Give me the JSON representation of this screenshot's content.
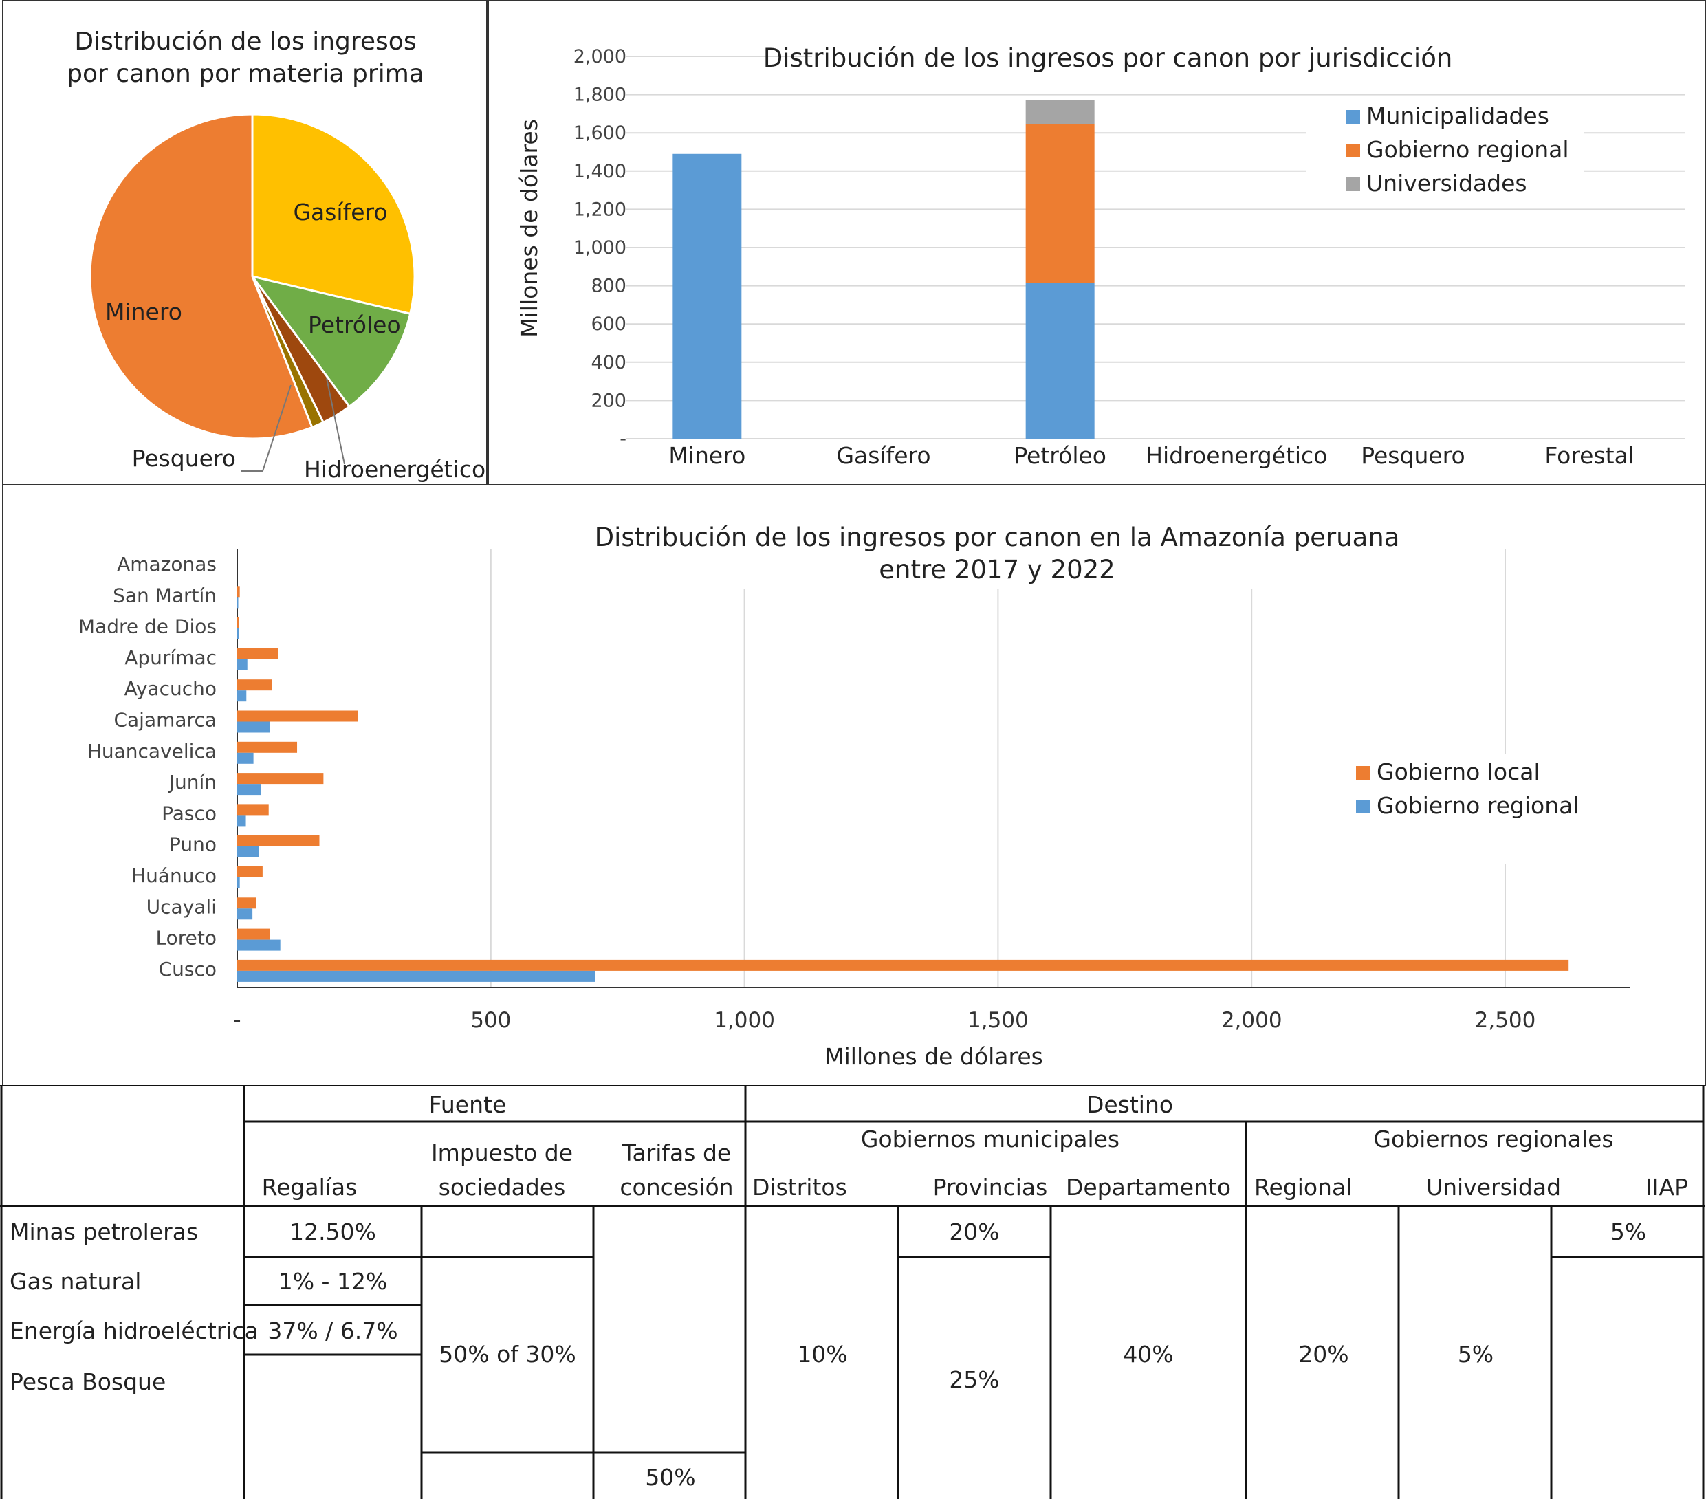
{
  "chart_data": [
    {
      "type": "pie",
      "title_lines": [
        "Distribución de los ingresos",
        "por canon por materia prima"
      ],
      "slices": [
        {
          "label": "Gasífero",
          "value": 28.7,
          "color": "#FFC000"
        },
        {
          "label": "Petróleo",
          "value": 11.1,
          "color": "#70AD47"
        },
        {
          "label": "Hidroenergético",
          "value": 3.0,
          "color": "#9E480E"
        },
        {
          "label": "Pesquero",
          "value": 1.2,
          "color": "#997300"
        },
        {
          "label": "Minero",
          "value": 56.0,
          "color": "#ED7D31"
        }
      ]
    },
    {
      "type": "bar",
      "stacked": true,
      "title": "Distribución de los ingresos por canon por jurisdicción",
      "ylabel": "Millones de dólares",
      "ylim": [
        0,
        2000
      ],
      "yticks": [
        "-",
        "200",
        "400",
        "600",
        "800",
        "1,000",
        "1,200",
        "1,400",
        "1,600",
        "1,800",
        "2,000"
      ],
      "categories": [
        "Minero",
        "Gasífero",
        "Petróleo",
        "Hidroenergético",
        "Pesquero",
        "Forestal"
      ],
      "series": [
        {
          "name": "Municipalidades",
          "color": "#5B9BD5",
          "values": [
            1490,
            0,
            815,
            0,
            0,
            0
          ]
        },
        {
          "name": "Gobierno regional",
          "color": "#ED7D31",
          "values": [
            0,
            0,
            830,
            0,
            0,
            0
          ]
        },
        {
          "name": "Universidades",
          "color": "#A5A5A5",
          "values": [
            0,
            0,
            125,
            0,
            0,
            0
          ]
        }
      ],
      "legend": "top-right",
      "grid": true
    },
    {
      "type": "bar",
      "orientation": "horizontal",
      "title_lines": [
        "Distribución de los ingresos por canon en la Amazonía peruana",
        "entre 2017 y 2022"
      ],
      "xlabel": "Millones de dólares",
      "xlim": [
        0,
        2750
      ],
      "xticks": [
        "-",
        "500",
        "1,000",
        "1,500",
        "2,000",
        "2,500"
      ],
      "categories": [
        "Amazonas",
        "San Martín",
        "Madre de Dios",
        "Apurímac",
        "Ayacucho",
        "Cajamarca",
        "Huancavelica",
        "Junín",
        "Pasco",
        "Puno",
        "Huánuco",
        "Ucayali",
        "Loreto",
        "Cusco"
      ],
      "series": [
        {
          "name": "Gobierno local",
          "color": "#ED7D31",
          "values": [
            0,
            5,
            3,
            80,
            68,
            238,
            118,
            170,
            62,
            162,
            50,
            37,
            65,
            2625
          ]
        },
        {
          "name": "Gobierno regional",
          "color": "#5B9BD5",
          "values": [
            0,
            1,
            3,
            20,
            18,
            65,
            32,
            47,
            17,
            43,
            5,
            30,
            85,
            705
          ]
        }
      ],
      "legend": "right",
      "grid": true
    }
  ],
  "table": {
    "header_fuente": "Fuente",
    "header_destino": "Destino",
    "header_gob_mun": "Gobiernos municipales",
    "header_gob_reg": "Gobiernos regionales",
    "col_regalias": "Regalías",
    "col_impuesto_1": "Impuesto de",
    "col_impuesto_2": "sociedades",
    "col_tarifas_1": "Tarifas de",
    "col_tarifas_2": "concesión",
    "col_distritos": "Distritos",
    "col_provincias": "Provincias",
    "col_departamento": "Departamento",
    "col_regional": "Regional",
    "col_universidad": "Universidad",
    "col_iiap": "IIAP",
    "row_minas": "Minas petroleras",
    "row_gas": "Gas natural",
    "row_energia": "Energía hidroeléctrica",
    "row_pesca": "Pesca Bosque",
    "v_regalias_minas": "12.50%",
    "v_regalias_gas": "1% - 12%",
    "v_regalias_energia": "37% / 6.7%",
    "v_impuesto": "50% of 30%",
    "v_tarifas": "50%",
    "v_distritos": "10%",
    "v_provincias_minas": "20%",
    "v_provincias": "25%",
    "v_departamento": "40%",
    "v_regional": "20%",
    "v_universidad": "5%",
    "v_iiap_minas": "5%"
  }
}
